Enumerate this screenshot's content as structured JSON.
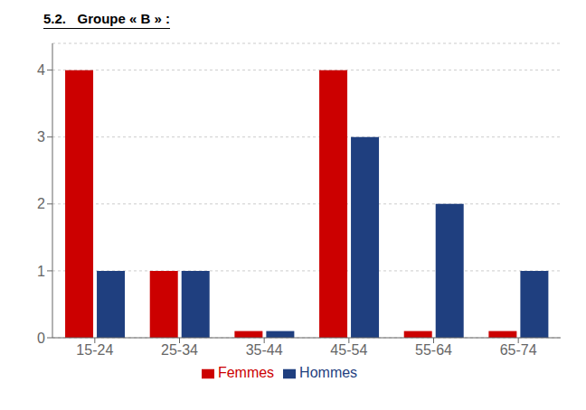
{
  "chart_data": {
    "type": "bar",
    "title": "5.2.   Groupe « B » :",
    "categories": [
      "15-24",
      "25-34",
      "35-44",
      "45-54",
      "55-64",
      "65-74"
    ],
    "series": [
      {
        "name": "Femmes",
        "color": "#cc0000",
        "values": [
          4,
          1,
          0.1,
          4,
          0.1,
          0.1
        ]
      },
      {
        "name": "Hommes",
        "color": "#1f3f7f",
        "values": [
          1,
          1,
          0.1,
          3,
          2,
          1
        ]
      }
    ],
    "ylim": [
      0,
      4.4
    ],
    "yticks": [
      0,
      1,
      2,
      3,
      4
    ],
    "grid": true,
    "legend": "bottom"
  }
}
